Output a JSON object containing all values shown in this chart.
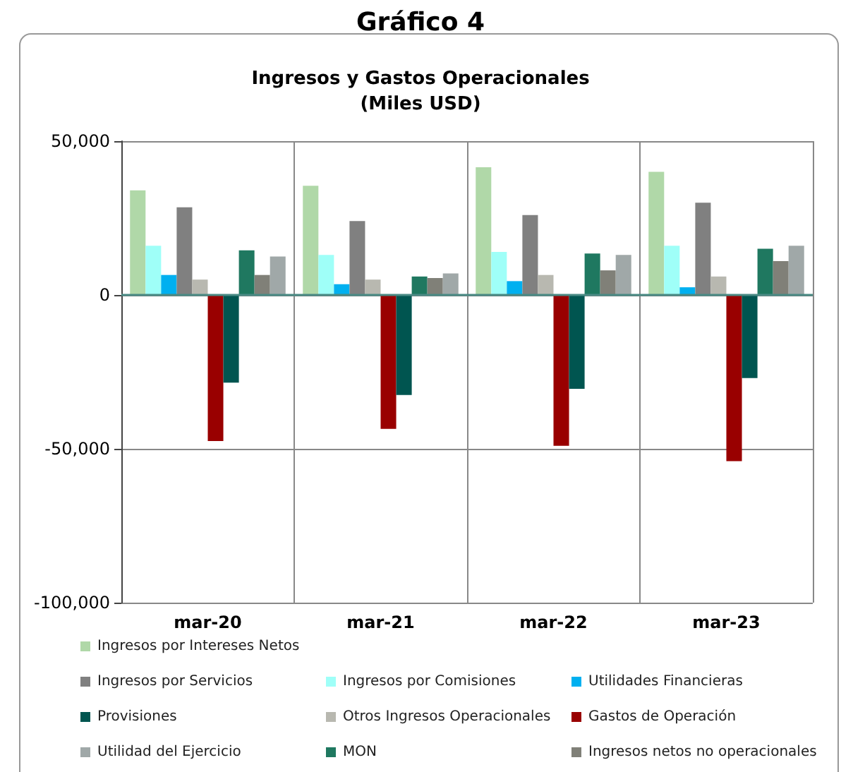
{
  "chart_data": {
    "type": "bar",
    "title": "Gráfico 4",
    "subtitle": "Ingresos y Gastos Operacionales\n(Miles USD)",
    "categories": [
      "mar-20",
      "mar-21",
      "mar-22",
      "mar-23"
    ],
    "series": [
      {
        "name": "Ingresos por Intereses Netos",
        "color": "#b0d8a8",
        "values": [
          34000,
          35500,
          41500,
          40000
        ]
      },
      {
        "name": "Ingresos por Comisiones",
        "color": "#9ffff8",
        "values": [
          16000,
          13000,
          14000,
          16000
        ]
      },
      {
        "name": "Utilidades Financieras",
        "color": "#00b0f0",
        "values": [
          6500,
          3500,
          4500,
          2500
        ]
      },
      {
        "name": "Ingresos por Servicios",
        "color": "#808080",
        "values": [
          28500,
          24000,
          26000,
          30000
        ]
      },
      {
        "name": "Otros Ingresos Operacionales",
        "color": "#b8b8b0",
        "values": [
          5000,
          5000,
          6500,
          6000
        ]
      },
      {
        "name": "Gastos de Operación",
        "color": "#990000",
        "values": [
          -47500,
          -43500,
          -49000,
          -54000
        ]
      },
      {
        "name": "Provisiones",
        "color": "#005550",
        "values": [
          -28500,
          -32500,
          -30500,
          -27000
        ]
      },
      {
        "name": "MON",
        "color": "#1f7860",
        "values": [
          14500,
          6000,
          13500,
          15000
        ]
      },
      {
        "name": "Ingresos netos no operacionales",
        "color": "#808078",
        "values": [
          6500,
          5500,
          8000,
          11000
        ]
      },
      {
        "name": "Utilidad del Ejercicio",
        "color": "#a0a8a8",
        "values": [
          12500,
          7000,
          13000,
          16000
        ]
      }
    ],
    "ylim": [
      -100000,
      50000
    ],
    "yticks": [
      {
        "value": -100000,
        "label": "-100,000"
      },
      {
        "value": -50000,
        "label": "-50,000"
      },
      0,
      {
        "value": 50000,
        "label": "50,000"
      }
    ],
    "ref_lines": [
      {
        "axis": "y",
        "value": 0,
        "color": "#4a8a84"
      }
    ],
    "grid": true,
    "legend": "bottom"
  }
}
